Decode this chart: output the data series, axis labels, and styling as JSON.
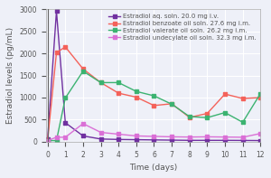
{
  "title": "",
  "xlabel": "Time (days)",
  "ylabel": "Estradiol levels (pg/mL)",
  "xlim": [
    -0.1,
    12
  ],
  "ylim": [
    0,
    3000
  ],
  "yticks": [
    0,
    500,
    1000,
    1500,
    2000,
    2500,
    3000
  ],
  "xticks": [
    0,
    1,
    2,
    3,
    4,
    5,
    6,
    7,
    8,
    9,
    10,
    11,
    12
  ],
  "series": [
    {
      "label": "Estradiol aq. soln. 20.0 mg i.v.",
      "color": "#7030a0",
      "marker": "s",
      "x": [
        0,
        0.5,
        1,
        2,
        3,
        4,
        5,
        6,
        7,
        8,
        9,
        10,
        11,
        12
      ],
      "y": [
        50,
        2960,
        430,
        130,
        60,
        50,
        45,
        40,
        35,
        30,
        30,
        30,
        28,
        25
      ]
    },
    {
      "label": "Estradiol benzoate oil soln. 27.6 mg i.m.",
      "color": "#f4625a",
      "marker": "s",
      "x": [
        0,
        0.5,
        1,
        2,
        3,
        4,
        5,
        6,
        7,
        8,
        9,
        10,
        11,
        12
      ],
      "y": [
        25,
        2020,
        2150,
        1650,
        1340,
        1100,
        1010,
        820,
        860,
        550,
        640,
        1080,
        980,
        1000
      ]
    },
    {
      "label": "Estradiol valerate oil soln. 26.2 mg i.m.",
      "color": "#3cb371",
      "marker": "s",
      "x": [
        0,
        0.5,
        1,
        2,
        3,
        4,
        5,
        6,
        7,
        8,
        9,
        10,
        11,
        12
      ],
      "y": [
        25,
        25,
        990,
        1600,
        1340,
        1340,
        1140,
        1040,
        850,
        570,
        545,
        660,
        440,
        1090
      ]
    },
    {
      "label": "Estradiol undecylate oil soln. 32.3 mg i.m.",
      "color": "#da70d6",
      "marker": "s",
      "x": [
        0,
        0.5,
        1,
        2,
        3,
        4,
        5,
        6,
        7,
        8,
        9,
        10,
        11,
        12
      ],
      "y": [
        25,
        100,
        100,
        410,
        210,
        170,
        130,
        120,
        110,
        105,
        110,
        105,
        100,
        185
      ]
    }
  ],
  "background_color": "#eef0f8",
  "plot_bg_color": "#eef0f8",
  "grid_color": "#ffffff",
  "legend_fontsize": 5.0,
  "axis_fontsize": 6.5,
  "tick_fontsize": 5.5,
  "linewidth": 1.0,
  "markersize": 2.8
}
